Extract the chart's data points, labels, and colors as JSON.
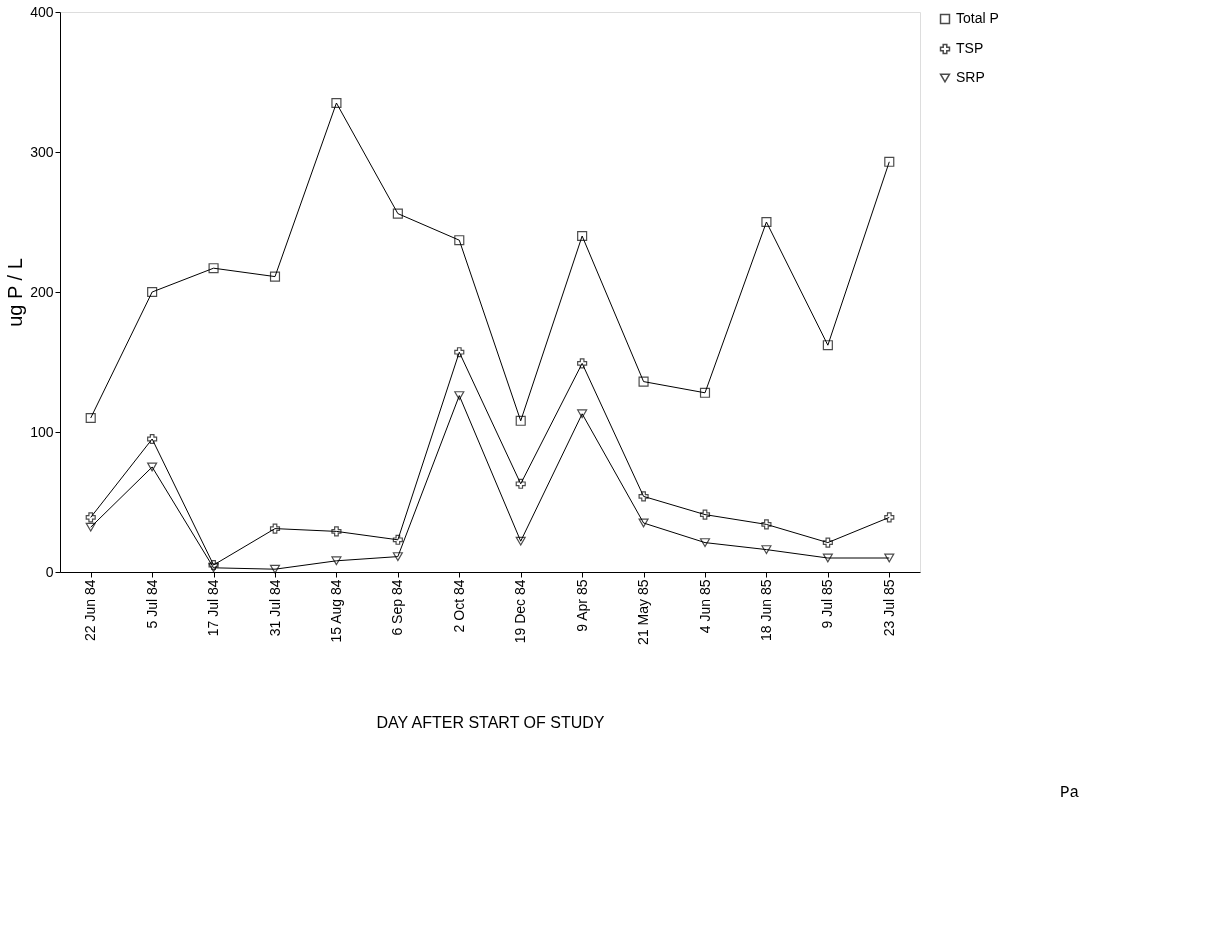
{
  "chart_data": {
    "type": "line",
    "xlabel": "DAY AFTER START OF STUDY",
    "ylabel": "ug P / L",
    "categories": [
      "22 Jun 84",
      "5 Jul 84",
      "17 Jul 84",
      "31 Jul 84",
      "15 Aug 84",
      "6 Sep 84",
      "2 Oct 84",
      "19 Dec 84",
      "9 Apr 85",
      "21 May 85",
      "4 Jun 85",
      "18 Jun 85",
      "9 Jul 85",
      "23 Jul 85"
    ],
    "series": [
      {
        "name": "Total P",
        "color": "#000000",
        "marker": "square",
        "values": [
          110,
          200,
          217,
          211,
          335,
          256,
          237,
          108,
          240,
          136,
          128,
          250,
          162,
          293
        ]
      },
      {
        "name": "TSP",
        "color": "#000000",
        "marker": "cross",
        "values": [
          39,
          95,
          5,
          31,
          29,
          23,
          157,
          63,
          149,
          54,
          41,
          34,
          21,
          39
        ]
      },
      {
        "name": "SRP",
        "color": "#000000",
        "marker": "triangle",
        "values": [
          32,
          75,
          3,
          2,
          8,
          11,
          126,
          22,
          113,
          35,
          21,
          16,
          10,
          10
        ]
      }
    ],
    "ylim": [
      0,
      400
    ],
    "yticks": [
      0,
      100,
      200,
      300,
      400
    ],
    "grid": false,
    "legend": "top right",
    "line_style": "solid",
    "annotations": [
      "Pa"
    ]
  }
}
